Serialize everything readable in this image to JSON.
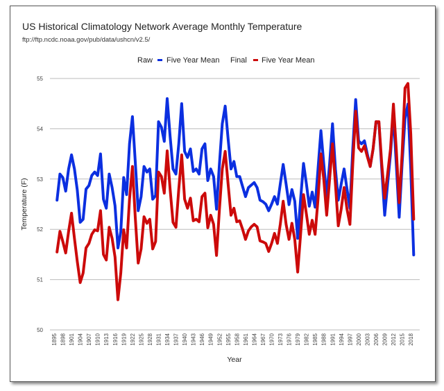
{
  "chart_data": {
    "type": "line",
    "title": "US Historical Climatology Network Average Monthly Temperature",
    "subtitle": "ftp://ftp.ncdc.noaa.gov/pub/data/ushcn/v2.5/",
    "xlabel": "Year",
    "ylabel": "Temperature (F)",
    "ylim": [
      50,
      55
    ],
    "xlim": [
      1895,
      2019
    ],
    "yticks": [
      "50",
      "51",
      "52",
      "53",
      "54",
      "55"
    ],
    "xticks": [
      "1895",
      "1898",
      "1901",
      "1904",
      "1907",
      "1910",
      "1913",
      "1916",
      "1919",
      "1922",
      "1925",
      "1928",
      "1931",
      "1934",
      "1937",
      "1940",
      "1943",
      "1946",
      "1949",
      "1952",
      "1955",
      "1958",
      "1961",
      "1964",
      "1967",
      "1970",
      "1973",
      "1976",
      "1979",
      "1982",
      "1985",
      "1988",
      "1991",
      "1994",
      "1997",
      "2000",
      "2003",
      "2006",
      "2009",
      "2012",
      "2015",
      "2018"
    ],
    "grid": true,
    "legend_position": "top",
    "x_start": 1896,
    "series": [
      {
        "group": "Raw",
        "name": "Five Year Mean",
        "color": "#0b2fe0",
        "values": [
          52.58,
          53.1,
          53.03,
          52.76,
          53.2,
          53.48,
          53.2,
          52.78,
          52.14,
          52.2,
          52.8,
          52.87,
          53.07,
          53.14,
          53.07,
          53.5,
          52.6,
          52.42,
          53.1,
          52.83,
          52.47,
          51.63,
          51.95,
          53.03,
          52.69,
          53.7,
          54.24,
          53.34,
          52.37,
          52.65,
          53.25,
          53.14,
          53.2,
          52.6,
          52.67,
          54.14,
          54.03,
          53.75,
          54.6,
          53.85,
          53.2,
          53.1,
          53.7,
          54.5,
          53.55,
          53.43,
          53.6,
          53.15,
          53.2,
          53.1,
          53.6,
          53.7,
          52.97,
          53.2,
          53.05,
          52.4,
          53.3,
          54.1,
          54.45,
          53.8,
          53.2,
          53.35,
          53.05,
          53.05,
          52.85,
          52.65,
          52.83,
          52.88,
          52.93,
          52.83,
          52.58,
          52.55,
          52.5,
          52.37,
          52.5,
          52.65,
          52.5,
          52.9,
          53.29,
          52.9,
          52.49,
          52.79,
          52.56,
          51.82,
          52.6,
          53.31,
          52.9,
          52.46,
          52.74,
          52.44,
          53.2,
          53.96,
          53.3,
          52.65,
          53.3,
          54.1,
          53.2,
          52.58,
          52.9,
          53.2,
          52.8,
          52.42,
          53.6,
          54.58,
          53.76,
          53.7,
          53.76,
          53.5,
          53.25,
          53.6,
          54.14,
          54.12,
          53.2,
          52.28,
          52.9,
          53.5,
          54.31,
          53.3,
          52.24,
          53.3,
          54.2,
          54.49,
          53.2,
          51.49
        ]
      },
      {
        "group": "Final",
        "name": "Five Year Mean",
        "color": "#cc0a0a",
        "values": [
          51.55,
          51.96,
          51.76,
          51.53,
          51.96,
          52.32,
          51.82,
          51.36,
          50.94,
          51.13,
          51.63,
          51.72,
          51.9,
          51.99,
          51.97,
          52.37,
          51.5,
          51.39,
          52.04,
          51.82,
          51.45,
          50.6,
          51.13,
          51.99,
          51.63,
          52.6,
          53.25,
          52.23,
          51.33,
          51.61,
          52.25,
          52.12,
          52.2,
          51.61,
          51.76,
          53.14,
          53.05,
          52.72,
          53.56,
          52.8,
          52.14,
          52.04,
          52.8,
          53.48,
          52.6,
          52.42,
          52.62,
          52.17,
          52.2,
          52.15,
          52.65,
          52.72,
          52.03,
          52.28,
          52.1,
          51.48,
          52.4,
          53.2,
          53.55,
          52.9,
          52.28,
          52.42,
          52.15,
          52.17,
          52.0,
          51.8,
          51.97,
          52.05,
          52.1,
          52.05,
          51.77,
          51.75,
          51.72,
          51.56,
          51.72,
          51.92,
          51.72,
          52.1,
          52.56,
          52.1,
          51.8,
          52.12,
          51.8,
          51.15,
          51.9,
          52.69,
          52.3,
          51.9,
          52.18,
          51.9,
          52.6,
          53.5,
          53.0,
          52.28,
          53.0,
          53.7,
          52.9,
          52.07,
          52.4,
          52.83,
          52.4,
          52.1,
          53.3,
          54.35,
          53.62,
          53.55,
          53.66,
          53.45,
          53.25,
          53.6,
          54.14,
          54.14,
          53.3,
          52.62,
          53.1,
          53.6,
          54.49,
          53.6,
          52.53,
          53.5,
          54.81,
          54.9,
          53.9,
          52.2
        ]
      }
    ]
  }
}
